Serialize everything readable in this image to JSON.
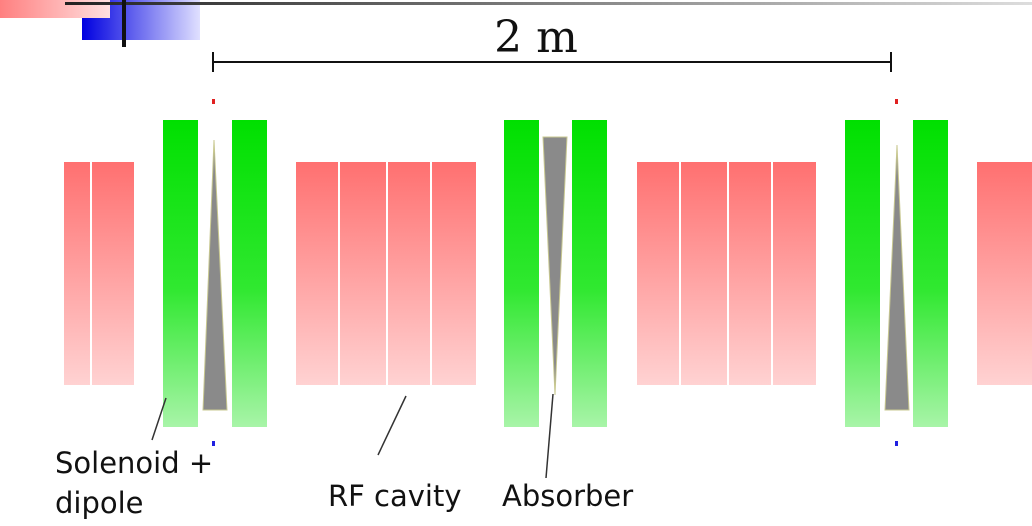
{
  "scale_label": "2 m",
  "labels": {
    "solenoid_dipole": [
      "Solenoid +",
      "dipole"
    ],
    "rf_cavity": "RF cavity",
    "absorber": "Absorber"
  }
}
